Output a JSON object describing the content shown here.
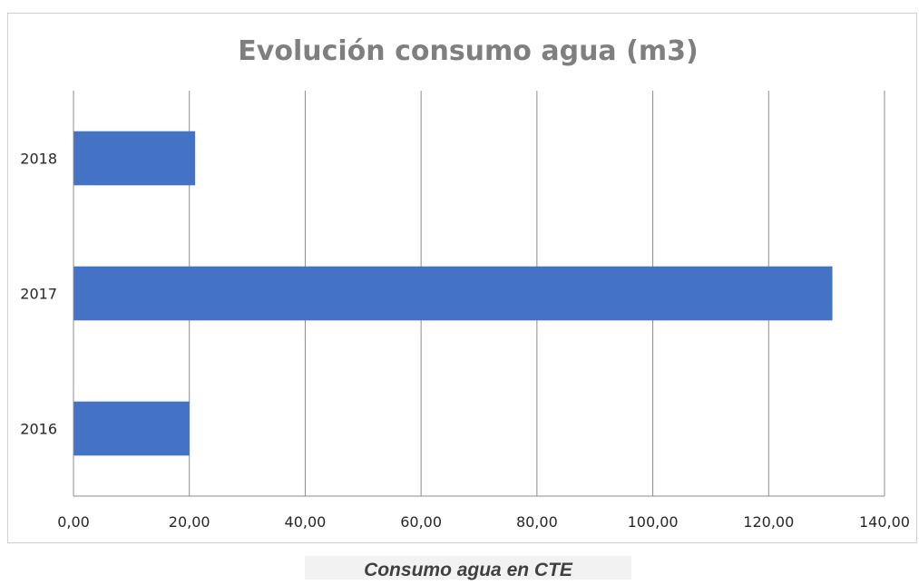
{
  "chart_data": {
    "type": "bar",
    "orientation": "horizontal",
    "title": "Evolución consumo agua (m3)",
    "categories": [
      "2016",
      "2017",
      "2018"
    ],
    "values": [
      20.0,
      131.0,
      21.0
    ],
    "xlim": [
      0,
      140
    ],
    "xticks": [
      "0,00",
      "20,00",
      "40,00",
      "60,00",
      "80,00",
      "100,00",
      "120,00",
      "140,00"
    ],
    "xlabel": "",
    "ylabel": "",
    "grid": "vertical",
    "legend": "none",
    "bar_color": "#4472c4"
  },
  "caption": "Consumo agua en CTE"
}
